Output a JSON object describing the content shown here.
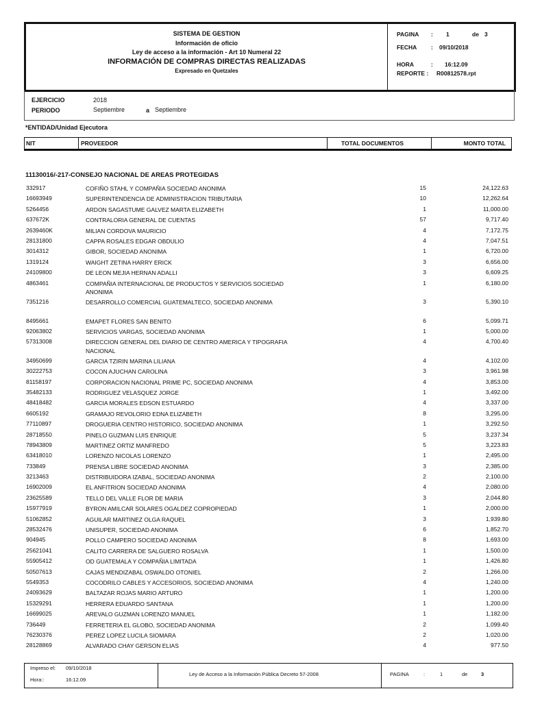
{
  "header": {
    "system": "SISTEMA DE GESTION",
    "subtitle": "Información de oficio",
    "law": "Ley de acceso a la información - Art 10 Numeral 22",
    "title": "INFORMACIÓN DE COMPRAS DIRECTAS REALIZADAS",
    "currency": "Expresado en Quetzales",
    "pagina_label": "PAGINA",
    "pagina": "1",
    "de_label": "de",
    "pagina_total": "3",
    "fecha_label": "FECHA",
    "fecha": "09/10/2018",
    "hora_label": "HORA",
    "hora": "16:12.09",
    "reporte_label": "REPORTE :",
    "reporte": "R00812578.rpt",
    "colon": ":"
  },
  "params": {
    "ejercicio_label": "EJERCICIO",
    "ejercicio": "2018",
    "periodo_label": "PERIODO",
    "periodo_desde": "Septiembre",
    "a_label": "a",
    "periodo_hasta": "Septiembre"
  },
  "entidad_label": "*ENTIDAD/Unidad Ejecutora",
  "columns": {
    "nit": "NIT",
    "proveedor": "PROVEEDOR",
    "total_documentos": "TOTAL DOCUMENTOS",
    "monto_total": "MONTO TOTAL"
  },
  "section_title": "11130016/-217-CONSEJO NACIONAL DE AREAS PROTEGIDAS",
  "rows": [
    {
      "nit": "332917",
      "proveedor": "COFIÑO STAHL Y COMPAÑIA SOCIEDAD ANONIMA",
      "docs": "15",
      "monto": "24,122.63"
    },
    {
      "nit": "16693949",
      "proveedor": "SUPERINTENDENCIA DE ADMINISTRACION TRIBUTARIA",
      "docs": "10",
      "monto": "12,262.64"
    },
    {
      "nit": "5264456",
      "proveedor": "ARDON SAGASTUME GALVEZ MARTA ELIZABETH",
      "docs": "1",
      "monto": "11,000.00"
    },
    {
      "nit": "637672K",
      "proveedor": "CONTRALORIA GENERAL DE CUENTAS",
      "docs": "57",
      "monto": "9,717.40"
    },
    {
      "nit": "2639460K",
      "proveedor": "MILIAN CORDOVA MAURICIO",
      "docs": "4",
      "monto": "7,172.75"
    },
    {
      "nit": "28131800",
      "proveedor": "CAPPA ROSALES EDGAR OBDULIO",
      "docs": "4",
      "monto": "7,047.51"
    },
    {
      "nit": "3014312",
      "proveedor": "GIBOR, SOCIEDAD ANONIMA",
      "docs": "1",
      "monto": "6,720.00"
    },
    {
      "nit": "1319124",
      "proveedor": "WAIGHT ZETINA HARRY ERICK",
      "docs": "3",
      "monto": "6,656.00"
    },
    {
      "nit": "24109800",
      "proveedor": "DE LEON MEJIA HERNAN ADALLI",
      "docs": "3",
      "monto": "6,609.25"
    },
    {
      "nit": "4863461",
      "proveedor": "COMPAÑIA INTERNACIONAL DE PRODUCTOS Y SERVICIOS SOCIEDAD ANONIMA",
      "docs": "1",
      "monto": "6,180.00",
      "wrap": true
    },
    {
      "nit": "7351216",
      "proveedor": "DESARROLLO COMERCIAL GUATEMALTECO, SOCIEDAD ANONIMA",
      "docs": "3",
      "monto": "5,390.10",
      "wrap": true
    },
    {
      "nit": "8495661",
      "proveedor": "EMAPET FLORES SAN BENITO",
      "docs": "6",
      "monto": "5,099.71"
    },
    {
      "nit": "92063802",
      "proveedor": "SERVICIOS VARGAS, SOCIEDAD ANONIMA",
      "docs": "1",
      "monto": "5,000.00"
    },
    {
      "nit": "57313008",
      "proveedor": "DIRECCION GENERAL DEL DIARIO DE CENTRO AMERICA Y TIPOGRAFIA NACIONAL",
      "docs": "4",
      "monto": "4,700.40",
      "wrap": true
    },
    {
      "nit": "34950699",
      "proveedor": "GARCIA TZIRIN MARINA LILIANA",
      "docs": "4",
      "monto": "4,102.00"
    },
    {
      "nit": "30222753",
      "proveedor": "COCON AJUCHAN CAROLINA",
      "docs": "3",
      "monto": "3,961.98"
    },
    {
      "nit": "81158197",
      "proveedor": "CORPORACION NACIONAL PRIME PC, SOCIEDAD ANONIMA",
      "docs": "4",
      "monto": "3,853.00"
    },
    {
      "nit": "35482133",
      "proveedor": "RODRIGUEZ VELASQUEZ JORGE",
      "docs": "1",
      "monto": "3,492.00"
    },
    {
      "nit": "48418482",
      "proveedor": "GARCIA MORALES EDSON ESTUARDO",
      "docs": "4",
      "monto": "3,337.00"
    },
    {
      "nit": "6605192",
      "proveedor": "GRAMAJO REVOLORIO EDNA ELIZABETH",
      "docs": "8",
      "monto": "3,295.00"
    },
    {
      "nit": "77110897",
      "proveedor": "DROGUERIA CENTRO HISTORICO, SOCIEDAD ANONIMA",
      "docs": "1",
      "monto": "3,292.50"
    },
    {
      "nit": "28718550",
      "proveedor": "PINELO GUZMAN LUIS ENRIQUE",
      "docs": "5",
      "monto": "3,237.34"
    },
    {
      "nit": "78943809",
      "proveedor": "MARTINEZ ORTIZ MANFREDO",
      "docs": "5",
      "monto": "3,223.83"
    },
    {
      "nit": "63418010",
      "proveedor": "LORENZO NICOLAS LORENZO",
      "docs": "1",
      "monto": "2,495.00"
    },
    {
      "nit": "733849",
      "proveedor": "PRENSA LIBRE  SOCIEDAD ANONIMA",
      "docs": "3",
      "monto": "2,385.00"
    },
    {
      "nit": "3213463",
      "proveedor": "DISTRIBUIDORA IZABAL, SOCIEDAD ANONIMA",
      "docs": "2",
      "monto": "2,100.00"
    },
    {
      "nit": "16902009",
      "proveedor": "EL ANFITRION SOCIEDAD ANONIMA",
      "docs": "4",
      "monto": "2,080.00"
    },
    {
      "nit": "23625589",
      "proveedor": "TELLO DEL VALLE FLOR DE MARIA",
      "docs": "3",
      "monto": "2,044.80"
    },
    {
      "nit": "15977919",
      "proveedor": "BYRON AMILCAR SOLARES OGALDEZ COPROPIEDAD",
      "docs": "1",
      "monto": "2,000.00"
    },
    {
      "nit": "51062852",
      "proveedor": "AGUILAR MARTINEZ OLGA RAQUEL",
      "docs": "3",
      "monto": "1,939.80"
    },
    {
      "nit": "28532476",
      "proveedor": "UNISUPER, SOCIEDAD ANONIMA",
      "docs": "6",
      "monto": "1,852.70"
    },
    {
      "nit": "904945",
      "proveedor": "POLLO CAMPERO SOCIEDAD ANONIMA",
      "docs": "8",
      "monto": "1,693.00"
    },
    {
      "nit": "25621041",
      "proveedor": "CALITO CARRERA DE SALGUERO ROSALVA",
      "docs": "1",
      "monto": "1,500.00"
    },
    {
      "nit": "55905412",
      "proveedor": "OD GUATEMALA Y COMPAÑIA LIMITADA",
      "docs": "1",
      "monto": "1,426.80"
    },
    {
      "nit": "50507613",
      "proveedor": "CAJAS MENDIZABAL OSWALDO OTONIEL",
      "docs": "2",
      "monto": "1,266.00"
    },
    {
      "nit": "5549353",
      "proveedor": "COCODRILO CABLES Y ACCESORIOS, SOCIEDAD ANONIMA",
      "docs": "4",
      "monto": "1,240.00"
    },
    {
      "nit": "24093629",
      "proveedor": "BALTAZAR ROJAS MARIO ARTURO",
      "docs": "1",
      "monto": "1,200.00"
    },
    {
      "nit": "15329291",
      "proveedor": "HERRERA  EDUARDO SANTANA",
      "docs": "1",
      "monto": "1,200.00"
    },
    {
      "nit": "16699025",
      "proveedor": "AREVALO GUZMAN LORENZO MANUEL",
      "docs": "1",
      "monto": "1,182.00"
    },
    {
      "nit": "736449",
      "proveedor": "FERRETERIA EL GLOBO, SOCIEDAD ANONIMA",
      "docs": "2",
      "monto": "1,099.40"
    },
    {
      "nit": "76230376",
      "proveedor": "PEREZ LOPEZ LUCILA SIOMARA",
      "docs": "2",
      "monto": "1,020.00"
    },
    {
      "nit": "28128869",
      "proveedor": "ALVARADO CHAY GERSON ELIAS",
      "docs": "4",
      "monto": "977.50"
    }
  ],
  "footer": {
    "impreso_label": "Impreso el:",
    "impreso": "09/10/2018",
    "hora_label": "Hora::",
    "hora": "16:12.09",
    "law": "Ley de Acceso a la Información Pública Decreto 57-2008",
    "pagina_label": "PAGINA",
    "colon": ":",
    "pagina": "1",
    "de_label": "de",
    "pagina_total": "3"
  }
}
